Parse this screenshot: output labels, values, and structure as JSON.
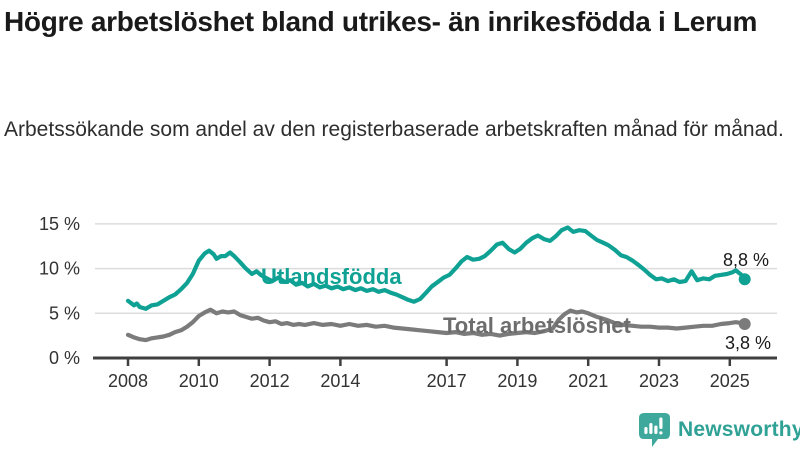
{
  "header": {
    "title": "Högre arbetslöshet bland utrikes- än inrikesfödda i Lerum",
    "subtitle": "Arbetssökande som andel av den registerbaserade arbetskraften månad för månad."
  },
  "chart_data": {
    "type": "line",
    "title": "Högre arbetslöshet bland utrikes- än inrikesfödda i Lerum",
    "subtitle": "Arbetssökande som andel av den registerbaserade arbetskraften månad för månad.",
    "unit": "%",
    "grid": true,
    "legend_position": "inline-labels",
    "x_axis": {
      "ticks": [
        2008,
        2010,
        2012,
        2014,
        2017,
        2019,
        2021,
        2023,
        2025
      ],
      "range": [
        2007.0,
        2026.3
      ]
    },
    "y_axis": {
      "tick_values": [
        0,
        5,
        10,
        15
      ],
      "tick_labels": [
        "0 %",
        "5 %",
        "10 %",
        "15 %"
      ],
      "range": [
        0,
        15.5
      ]
    },
    "series": [
      {
        "name": "Utlandsfödda",
        "color": "#0fa294",
        "end_label": "8,8 %",
        "end_value": 8.8,
        "points": [
          [
            2008.0,
            6.4
          ],
          [
            2008.17,
            5.9
          ],
          [
            2008.25,
            6.1
          ],
          [
            2008.33,
            5.7
          ],
          [
            2008.5,
            5.5
          ],
          [
            2008.67,
            5.9
          ],
          [
            2008.83,
            6.0
          ],
          [
            2009.0,
            6.4
          ],
          [
            2009.17,
            6.8
          ],
          [
            2009.33,
            7.1
          ],
          [
            2009.5,
            7.7
          ],
          [
            2009.67,
            8.4
          ],
          [
            2009.83,
            9.4
          ],
          [
            2010.0,
            10.9
          ],
          [
            2010.17,
            11.7
          ],
          [
            2010.29,
            12.0
          ],
          [
            2010.42,
            11.6
          ],
          [
            2010.5,
            11.1
          ],
          [
            2010.63,
            11.4
          ],
          [
            2010.75,
            11.4
          ],
          [
            2010.88,
            11.8
          ],
          [
            2011.0,
            11.4
          ],
          [
            2011.17,
            10.7
          ],
          [
            2011.33,
            10.0
          ],
          [
            2011.5,
            9.4
          ],
          [
            2011.63,
            9.7
          ],
          [
            2011.75,
            9.3
          ],
          [
            2011.92,
            8.9
          ],
          [
            2012.08,
            8.6
          ],
          [
            2012.25,
            9.0
          ],
          [
            2012.42,
            8.5
          ],
          [
            2012.58,
            8.7
          ],
          [
            2012.75,
            8.2
          ],
          [
            2012.92,
            8.4
          ],
          [
            2013.08,
            8.0
          ],
          [
            2013.25,
            8.3
          ],
          [
            2013.42,
            7.9
          ],
          [
            2013.58,
            8.1
          ],
          [
            2013.75,
            7.8
          ],
          [
            2013.92,
            8.0
          ],
          [
            2014.08,
            7.7
          ],
          [
            2014.25,
            7.9
          ],
          [
            2014.42,
            7.6
          ],
          [
            2014.58,
            7.8
          ],
          [
            2014.75,
            7.5
          ],
          [
            2014.92,
            7.7
          ],
          [
            2015.08,
            7.4
          ],
          [
            2015.25,
            7.6
          ],
          [
            2015.42,
            7.3
          ],
          [
            2015.58,
            7.1
          ],
          [
            2015.75,
            6.8
          ],
          [
            2015.92,
            6.5
          ],
          [
            2016.08,
            6.3
          ],
          [
            2016.25,
            6.6
          ],
          [
            2016.42,
            7.3
          ],
          [
            2016.58,
            8.0
          ],
          [
            2016.75,
            8.5
          ],
          [
            2016.92,
            9.0
          ],
          [
            2017.08,
            9.3
          ],
          [
            2017.25,
            10.0
          ],
          [
            2017.42,
            10.8
          ],
          [
            2017.58,
            11.3
          ],
          [
            2017.75,
            11.0
          ],
          [
            2017.92,
            11.1
          ],
          [
            2018.08,
            11.4
          ],
          [
            2018.25,
            12.0
          ],
          [
            2018.42,
            12.7
          ],
          [
            2018.58,
            12.9
          ],
          [
            2018.75,
            12.2
          ],
          [
            2018.92,
            11.8
          ],
          [
            2019.08,
            12.2
          ],
          [
            2019.25,
            12.9
          ],
          [
            2019.42,
            13.4
          ],
          [
            2019.58,
            13.7
          ],
          [
            2019.75,
            13.3
          ],
          [
            2019.92,
            13.1
          ],
          [
            2020.08,
            13.6
          ],
          [
            2020.25,
            14.3
          ],
          [
            2020.42,
            14.6
          ],
          [
            2020.58,
            14.1
          ],
          [
            2020.75,
            14.3
          ],
          [
            2020.92,
            14.2
          ],
          [
            2021.08,
            13.7
          ],
          [
            2021.25,
            13.2
          ],
          [
            2021.42,
            12.9
          ],
          [
            2021.58,
            12.6
          ],
          [
            2021.75,
            12.1
          ],
          [
            2021.92,
            11.5
          ],
          [
            2022.08,
            11.3
          ],
          [
            2022.25,
            10.9
          ],
          [
            2022.42,
            10.4
          ],
          [
            2022.58,
            9.9
          ],
          [
            2022.75,
            9.3
          ],
          [
            2022.92,
            8.8
          ],
          [
            2023.08,
            8.9
          ],
          [
            2023.25,
            8.6
          ],
          [
            2023.42,
            8.8
          ],
          [
            2023.58,
            8.5
          ],
          [
            2023.75,
            8.6
          ],
          [
            2023.92,
            9.7
          ],
          [
            2024.08,
            8.7
          ],
          [
            2024.25,
            8.9
          ],
          [
            2024.42,
            8.8
          ],
          [
            2024.58,
            9.2
          ],
          [
            2024.75,
            9.3
          ],
          [
            2024.92,
            9.4
          ],
          [
            2025.08,
            9.6
          ],
          [
            2025.17,
            9.8
          ],
          [
            2025.33,
            9.3
          ],
          [
            2025.42,
            8.8
          ]
        ]
      },
      {
        "name": "Total arbetslöshet",
        "color": "#7b7b7b",
        "label_color": "#6d6d6d",
        "end_label": "3,8 %",
        "end_value": 3.8,
        "points": [
          [
            2008.0,
            2.6
          ],
          [
            2008.17,
            2.3
          ],
          [
            2008.33,
            2.1
          ],
          [
            2008.5,
            2.0
          ],
          [
            2008.67,
            2.2
          ],
          [
            2008.83,
            2.3
          ],
          [
            2009.0,
            2.4
          ],
          [
            2009.17,
            2.6
          ],
          [
            2009.33,
            2.9
          ],
          [
            2009.5,
            3.1
          ],
          [
            2009.67,
            3.5
          ],
          [
            2009.83,
            4.0
          ],
          [
            2010.0,
            4.7
          ],
          [
            2010.17,
            5.1
          ],
          [
            2010.33,
            5.4
          ],
          [
            2010.5,
            5.0
          ],
          [
            2010.67,
            5.2
          ],
          [
            2010.83,
            5.1
          ],
          [
            2011.0,
            5.2
          ],
          [
            2011.17,
            4.8
          ],
          [
            2011.33,
            4.6
          ],
          [
            2011.5,
            4.4
          ],
          [
            2011.67,
            4.5
          ],
          [
            2011.83,
            4.2
          ],
          [
            2012.0,
            4.0
          ],
          [
            2012.17,
            4.1
          ],
          [
            2012.33,
            3.8
          ],
          [
            2012.5,
            3.9
          ],
          [
            2012.67,
            3.7
          ],
          [
            2012.83,
            3.8
          ],
          [
            2013.0,
            3.7
          ],
          [
            2013.25,
            3.9
          ],
          [
            2013.5,
            3.7
          ],
          [
            2013.75,
            3.8
          ],
          [
            2014.0,
            3.6
          ],
          [
            2014.25,
            3.8
          ],
          [
            2014.5,
            3.6
          ],
          [
            2014.75,
            3.7
          ],
          [
            2015.0,
            3.5
          ],
          [
            2015.25,
            3.6
          ],
          [
            2015.5,
            3.4
          ],
          [
            2015.75,
            3.3
          ],
          [
            2016.0,
            3.2
          ],
          [
            2016.25,
            3.1
          ],
          [
            2016.5,
            3.0
          ],
          [
            2016.75,
            2.9
          ],
          [
            2017.0,
            2.8
          ],
          [
            2017.25,
            2.9
          ],
          [
            2017.5,
            2.7
          ],
          [
            2017.75,
            2.8
          ],
          [
            2018.0,
            2.6
          ],
          [
            2018.25,
            2.7
          ],
          [
            2018.5,
            2.5
          ],
          [
            2018.75,
            2.7
          ],
          [
            2019.0,
            2.8
          ],
          [
            2019.25,
            2.9
          ],
          [
            2019.5,
            2.8
          ],
          [
            2019.75,
            3.0
          ],
          [
            2020.0,
            3.3
          ],
          [
            2020.17,
            4.3
          ],
          [
            2020.33,
            4.9
          ],
          [
            2020.5,
            5.3
          ],
          [
            2020.67,
            5.1
          ],
          [
            2020.83,
            5.2
          ],
          [
            2021.0,
            5.0
          ],
          [
            2021.25,
            4.6
          ],
          [
            2021.5,
            4.3
          ],
          [
            2021.75,
            3.9
          ],
          [
            2022.0,
            3.7
          ],
          [
            2022.25,
            3.6
          ],
          [
            2022.5,
            3.5
          ],
          [
            2022.75,
            3.5
          ],
          [
            2023.0,
            3.4
          ],
          [
            2023.25,
            3.4
          ],
          [
            2023.5,
            3.3
          ],
          [
            2023.75,
            3.4
          ],
          [
            2024.0,
            3.5
          ],
          [
            2024.25,
            3.6
          ],
          [
            2024.5,
            3.6
          ],
          [
            2024.75,
            3.8
          ],
          [
            2025.0,
            3.9
          ],
          [
            2025.17,
            4.0
          ],
          [
            2025.33,
            3.9
          ],
          [
            2025.42,
            3.8
          ]
        ]
      }
    ]
  },
  "footer": {
    "brand": "Newsworthy",
    "brand_color": "#2fa195",
    "logo_icon": "bar-chart-speech-bubble-icon"
  },
  "colors": {
    "background": "#ffffff",
    "title": "#1a1a1a",
    "axis": "#3f3f3f",
    "axis_text": "#333333",
    "gridline": "#dcdcdc"
  }
}
